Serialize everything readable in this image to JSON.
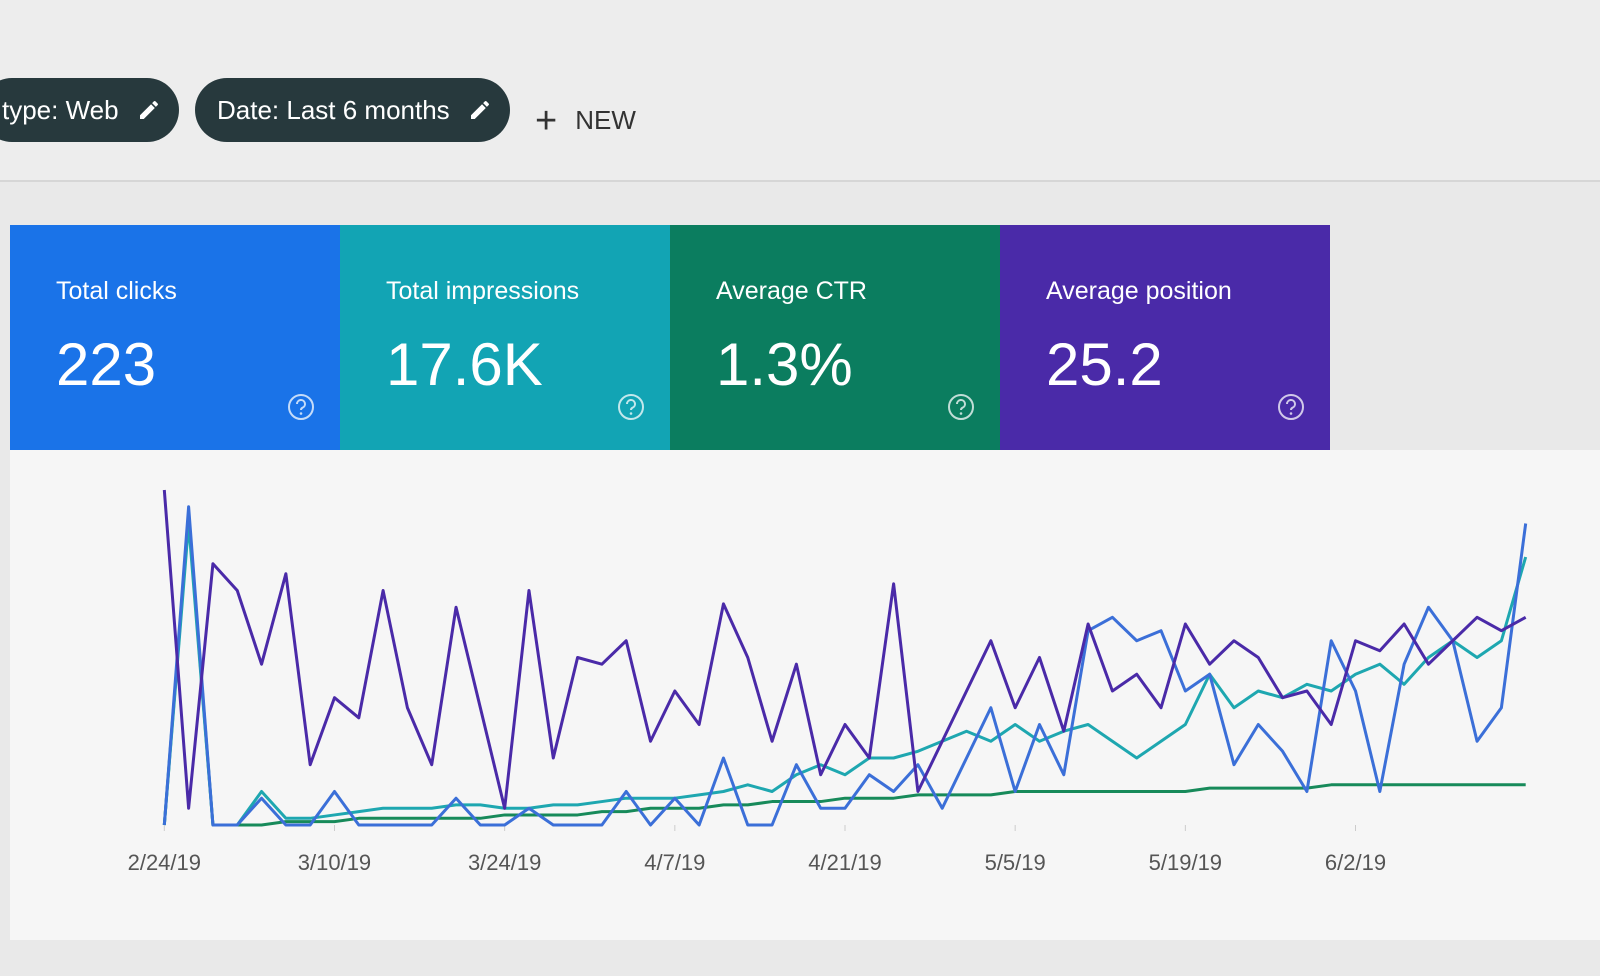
{
  "filters": {
    "chips": [
      "type: Web",
      "Date: Last 6 months"
    ],
    "new": "NEW"
  },
  "cards": [
    {
      "label": "Total clicks",
      "value": "223",
      "color": "#1a73e8"
    },
    {
      "label": "Total impressions",
      "value": "17.6K",
      "color": "#12a4b4"
    },
    {
      "label": "Average CTR",
      "value": "1.3%",
      "color": "#0b7d5f"
    },
    {
      "label": "Average position",
      "value": "25.2",
      "color": "#4a2aa8"
    }
  ],
  "chart_data": {
    "type": "line",
    "x": [
      0,
      2,
      4,
      6,
      8,
      10,
      12,
      14,
      16,
      18,
      20,
      22,
      24,
      26,
      28,
      30,
      32,
      34,
      36,
      38,
      40,
      42,
      44,
      46,
      48,
      50,
      52,
      54,
      56,
      58,
      60,
      62,
      64,
      66,
      68,
      70,
      72,
      74,
      76,
      78,
      80,
      82,
      84,
      86,
      88,
      90,
      92,
      94,
      96,
      98,
      100,
      102,
      104,
      106,
      108,
      110,
      112
    ],
    "xlim": [
      -2,
      114
    ],
    "xticks": [
      {
        "value": 0,
        "label": "2/24/19"
      },
      {
        "value": 14,
        "label": "3/10/19"
      },
      {
        "value": 28,
        "label": "3/24/19"
      },
      {
        "value": 42,
        "label": "4/7/19"
      },
      {
        "value": 56,
        "label": "4/21/19"
      },
      {
        "value": 70,
        "label": "5/5/19"
      },
      {
        "value": 84,
        "label": "5/19/19"
      },
      {
        "value": 98,
        "label": "6/2/19"
      }
    ],
    "ylim": [
      0,
      100
    ],
    "series": [
      {
        "name": "Average position",
        "color": "#4a2aa8",
        "values": [
          100,
          5,
          78,
          70,
          48,
          75,
          18,
          38,
          32,
          70,
          35,
          18,
          65,
          35,
          5,
          70,
          20,
          50,
          48,
          55,
          25,
          40,
          30,
          66,
          50,
          25,
          48,
          15,
          30,
          20,
          72,
          10,
          25,
          40,
          55,
          35,
          50,
          28,
          60,
          40,
          45,
          35,
          60,
          48,
          55,
          50,
          38,
          40,
          30,
          55,
          52,
          60,
          48,
          55,
          62,
          58,
          62
        ]
      },
      {
        "name": "Total clicks",
        "color": "#3b6fd8",
        "values": [
          0,
          95,
          0,
          0,
          8,
          0,
          0,
          10,
          0,
          0,
          0,
          0,
          8,
          0,
          0,
          5,
          0,
          0,
          0,
          10,
          0,
          8,
          0,
          20,
          0,
          0,
          18,
          5,
          5,
          15,
          10,
          18,
          5,
          20,
          35,
          10,
          30,
          15,
          58,
          62,
          55,
          58,
          40,
          45,
          18,
          30,
          22,
          10,
          55,
          40,
          10,
          48,
          65,
          55,
          25,
          35,
          90
        ]
      },
      {
        "name": "Total impressions",
        "color": "#1ea7b0",
        "values": [
          0,
          90,
          0,
          0,
          10,
          2,
          2,
          3,
          4,
          5,
          5,
          5,
          6,
          6,
          5,
          5,
          6,
          6,
          7,
          8,
          8,
          8,
          9,
          10,
          12,
          10,
          15,
          18,
          15,
          20,
          20,
          22,
          25,
          28,
          25,
          30,
          25,
          28,
          30,
          25,
          20,
          25,
          30,
          45,
          35,
          40,
          38,
          42,
          40,
          45,
          48,
          42,
          50,
          55,
          50,
          55,
          80
        ]
      },
      {
        "name": "Average CTR",
        "color": "#178a5a",
        "values": [
          0,
          92,
          0,
          0,
          0,
          1,
          1,
          1,
          2,
          2,
          2,
          2,
          2,
          2,
          3,
          3,
          3,
          3,
          4,
          4,
          5,
          5,
          5,
          6,
          6,
          7,
          7,
          7,
          8,
          8,
          8,
          9,
          9,
          9,
          9,
          10,
          10,
          10,
          10,
          10,
          10,
          10,
          10,
          11,
          11,
          11,
          11,
          11,
          12,
          12,
          12,
          12,
          12,
          12,
          12,
          12,
          12
        ]
      }
    ]
  }
}
